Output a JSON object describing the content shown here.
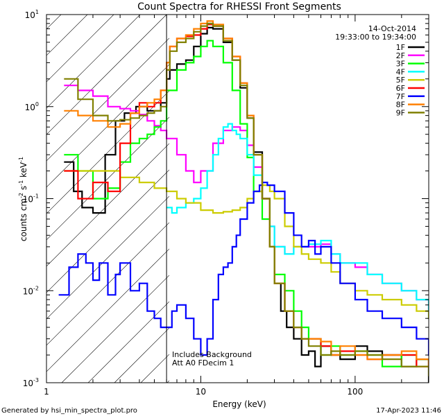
{
  "chart_data": {
    "type": "line",
    "title": "Count Spectra for RHESSI Front Segments",
    "xlabel": "Energy (keV)",
    "ylabel_main": "counts cm",
    "ylabel_sup1": "-2",
    "ylabel_mid1": " s",
    "ylabel_sup2": "-1",
    "ylabel_mid2": " keV",
    "ylabel_sup3": "-1",
    "x_scale": "log",
    "y_scale": "log",
    "xlim": [
      1,
      300
    ],
    "ylim": [
      0.001,
      10
    ],
    "x_ticks": [
      {
        "v": 1,
        "label": "1"
      },
      {
        "v": 10,
        "label": "10"
      },
      {
        "v": 100,
        "label": "100"
      }
    ],
    "y_ticks": [
      {
        "v": 0.001,
        "base": "10",
        "exp": "-3"
      },
      {
        "v": 0.01,
        "base": "10",
        "exp": "-2"
      },
      {
        "v": 0.1,
        "base": "10",
        "exp": "-1"
      },
      {
        "v": 1,
        "base": "10",
        "exp": "0"
      },
      {
        "v": 10,
        "base": "10",
        "exp": "1"
      }
    ],
    "date": "14-Oct-2014",
    "time_range": "19:33:00 to 19:34:00",
    "attenuator_line_x": 6,
    "annotation_line1": "Includes Background",
    "annotation_line2": "Att A0  FDecim 1",
    "footer_left": "Generated by hsi_min_spectra_plot.pro",
    "footer_right": "17-Apr-2023 11:46",
    "series": [
      {
        "name": "1F",
        "color": "#000000",
        "x": [
          1.3,
          1.5,
          1.7,
          2.0,
          2.4,
          2.8,
          3.2,
          3.8,
          4.5,
          5.5,
          6.0,
          6.3,
          7,
          8,
          9,
          10,
          11,
          12,
          14,
          16,
          18,
          20,
          22,
          25,
          28,
          30,
          33,
          36,
          40,
          45,
          50,
          55,
          60,
          70,
          80,
          100,
          120,
          150,
          200,
          250,
          300
        ],
        "y": [
          0.25,
          0.12,
          0.08,
          0.07,
          0.3,
          0.7,
          0.85,
          1.0,
          0.9,
          1.1,
          2.0,
          2.5,
          2.9,
          3.2,
          4.5,
          6.2,
          7.2,
          7.0,
          5.0,
          3.2,
          1.6,
          0.75,
          0.32,
          0.1,
          0.03,
          0.012,
          0.006,
          0.004,
          0.003,
          0.002,
          0.0022,
          0.0015,
          0.0025,
          0.002,
          0.0018,
          0.0025,
          0.0022,
          0.002,
          0.0015,
          0.0018,
          0.001
        ]
      },
      {
        "name": "2F",
        "color": "#ff00ff",
        "x": [
          1.3,
          1.6,
          2.0,
          2.5,
          3.0,
          3.5,
          4.0,
          4.5,
          5.0,
          5.5,
          6.0,
          7,
          8,
          9,
          10,
          12,
          14,
          16,
          18,
          20,
          22,
          25,
          28,
          30,
          35,
          40,
          50,
          60,
          70,
          80,
          100,
          120,
          150,
          200,
          250,
          300
        ],
        "y": [
          1.7,
          1.5,
          1.3,
          1.0,
          0.95,
          0.9,
          0.82,
          0.7,
          0.62,
          0.55,
          0.45,
          0.3,
          0.2,
          0.15,
          0.2,
          0.4,
          0.55,
          0.6,
          0.55,
          0.38,
          0.22,
          0.1,
          0.05,
          0.03,
          0.025,
          0.03,
          0.03,
          0.032,
          0.025,
          0.02,
          0.018,
          0.015,
          0.012,
          0.01,
          0.008,
          0.006
        ]
      },
      {
        "name": "3F",
        "color": "#00ff00",
        "x": [
          1.3,
          1.6,
          2.0,
          2.5,
          3.0,
          3.5,
          4.0,
          4.5,
          5.0,
          5.5,
          6.0,
          7,
          8,
          9,
          10,
          11,
          12,
          14,
          16,
          18,
          20,
          22,
          25,
          28,
          30,
          35,
          40,
          45,
          50,
          60,
          70,
          80,
          100,
          120,
          150,
          200,
          250,
          300
        ],
        "y": [
          0.3,
          0.2,
          0.1,
          0.13,
          0.25,
          0.4,
          0.45,
          0.5,
          0.6,
          0.7,
          1.5,
          2.5,
          3.0,
          3.5,
          4.5,
          5.2,
          4.5,
          3.0,
          1.5,
          0.65,
          0.28,
          0.12,
          0.06,
          0.03,
          0.015,
          0.01,
          0.006,
          0.004,
          0.003,
          0.002,
          0.0025,
          0.002,
          0.0022,
          0.002,
          0.0015,
          0.002,
          0.0018,
          0.0015
        ]
      },
      {
        "name": "4F",
        "color": "#00ffff",
        "x": [
          6.0,
          6.5,
          7,
          8,
          9,
          10,
          11,
          12,
          13,
          14,
          15,
          16,
          17,
          18,
          20,
          22,
          25,
          28,
          30,
          35,
          40,
          45,
          50,
          60,
          70,
          80,
          100,
          120,
          150,
          200,
          250,
          300
        ],
        "y": [
          0.08,
          0.07,
          0.08,
          0.09,
          0.1,
          0.13,
          0.2,
          0.3,
          0.45,
          0.6,
          0.65,
          0.55,
          0.5,
          0.45,
          0.3,
          0.18,
          0.1,
          0.05,
          0.03,
          0.025,
          0.03,
          0.03,
          0.032,
          0.035,
          0.025,
          0.02,
          0.02,
          0.015,
          0.012,
          0.01,
          0.008,
          0.005
        ]
      },
      {
        "name": "5F",
        "color": "#cccc00",
        "x": [
          1.3,
          2.0,
          3.0,
          4.0,
          5.0,
          6.0,
          7,
          8,
          10,
          12,
          14,
          16,
          18,
          20,
          22,
          25,
          28,
          30,
          35,
          40,
          45,
          50,
          60,
          70,
          80,
          100,
          120,
          150,
          200,
          250,
          300
        ],
        "y": [
          0.2,
          0.2,
          0.17,
          0.15,
          0.13,
          0.12,
          0.1,
          0.09,
          0.075,
          0.07,
          0.072,
          0.075,
          0.08,
          0.1,
          0.12,
          0.14,
          0.12,
          0.1,
          0.05,
          0.03,
          0.025,
          0.022,
          0.02,
          0.016,
          0.012,
          0.01,
          0.009,
          0.008,
          0.007,
          0.006,
          0.005
        ]
      },
      {
        "name": "6F",
        "color": "#ff0000",
        "x": [
          1.3,
          1.6,
          2.0,
          2.5,
          3.0,
          3.5,
          4.0,
          4.5,
          5.0,
          5.5,
          6.0,
          6.3,
          7,
          8,
          9,
          10,
          11,
          12,
          14,
          16,
          18,
          20,
          22,
          25,
          28,
          30,
          35,
          40,
          45,
          50,
          60,
          70,
          80,
          100,
          120,
          150,
          200,
          250,
          300
        ],
        "y": [
          0.2,
          0.1,
          0.15,
          0.12,
          0.4,
          0.85,
          1.1,
          1.0,
          1.1,
          1.5,
          3.0,
          4.5,
          5.5,
          5.8,
          6.0,
          7.0,
          7.8,
          7.5,
          5.5,
          3.5,
          1.8,
          0.8,
          0.3,
          0.1,
          0.03,
          0.012,
          0.006,
          0.004,
          0.003,
          0.003,
          0.0025,
          0.002,
          0.0022,
          0.002,
          0.0018,
          0.002,
          0.002,
          0.0015,
          0.0018
        ]
      },
      {
        "name": "7F",
        "color": "#0000ff",
        "x": [
          1.2,
          1.4,
          1.6,
          1.8,
          2.0,
          2.2,
          2.5,
          2.8,
          3.0,
          3.5,
          4.0,
          4.5,
          5.0,
          5.5,
          6.0,
          6.5,
          7,
          8,
          9,
          10,
          11,
          12,
          13,
          14,
          15,
          16,
          17,
          18,
          20,
          22,
          24,
          25,
          27,
          30,
          35,
          40,
          45,
          50,
          55,
          60,
          70,
          80,
          100,
          120,
          150,
          200,
          250,
          300
        ],
        "y": [
          0.009,
          0.018,
          0.025,
          0.02,
          0.013,
          0.02,
          0.009,
          0.015,
          0.02,
          0.01,
          0.012,
          0.006,
          0.005,
          0.004,
          0.004,
          0.006,
          0.007,
          0.005,
          0.003,
          0.002,
          0.003,
          0.008,
          0.015,
          0.018,
          0.02,
          0.03,
          0.04,
          0.06,
          0.09,
          0.12,
          0.14,
          0.15,
          0.14,
          0.12,
          0.07,
          0.04,
          0.03,
          0.035,
          0.025,
          0.03,
          0.02,
          0.012,
          0.008,
          0.006,
          0.005,
          0.004,
          0.003,
          0.002
        ]
      },
      {
        "name": "8F",
        "color": "#ff8000",
        "x": [
          1.3,
          1.6,
          2.0,
          2.5,
          3.0,
          3.5,
          4.0,
          4.5,
          5.0,
          5.5,
          6.0,
          6.3,
          7,
          8,
          9,
          10,
          11,
          12,
          14,
          16,
          18,
          20,
          22,
          25,
          28,
          30,
          35,
          40,
          45,
          50,
          60,
          70,
          80,
          100,
          120,
          150,
          200,
          250,
          300
        ],
        "y": [
          0.9,
          0.8,
          0.7,
          0.6,
          0.65,
          0.85,
          1.0,
          1.1,
          1.2,
          1.5,
          3.0,
          4.5,
          5.5,
          6.0,
          7.0,
          8.0,
          8.5,
          7.8,
          5.5,
          3.5,
          1.8,
          0.8,
          0.3,
          0.1,
          0.03,
          0.012,
          0.006,
          0.004,
          0.003,
          0.003,
          0.0028,
          0.002,
          0.0025,
          0.002,
          0.0018,
          0.002,
          0.0022,
          0.0018,
          0.0015
        ]
      },
      {
        "name": "9F",
        "color": "#808000",
        "x": [
          1.3,
          1.6,
          2.0,
          2.5,
          3.0,
          3.5,
          4.0,
          4.5,
          5.0,
          5.5,
          6.0,
          6.3,
          7,
          8,
          9,
          10,
          11,
          12,
          14,
          16,
          18,
          20,
          22,
          25,
          28,
          30,
          35,
          40,
          45,
          50,
          60,
          70,
          80,
          100,
          120,
          150,
          200,
          250,
          300
        ],
        "y": [
          2.0,
          1.2,
          0.8,
          0.7,
          0.72,
          0.75,
          0.8,
          0.85,
          0.9,
          1.0,
          2.5,
          4.0,
          5.0,
          5.5,
          6.5,
          7.5,
          8.0,
          7.5,
          5.2,
          3.2,
          1.7,
          0.75,
          0.3,
          0.1,
          0.03,
          0.012,
          0.006,
          0.004,
          0.003,
          0.0025,
          0.002,
          0.0022,
          0.002,
          0.0022,
          0.002,
          0.0018,
          0.0015,
          0.0015,
          0.0012
        ]
      }
    ]
  }
}
